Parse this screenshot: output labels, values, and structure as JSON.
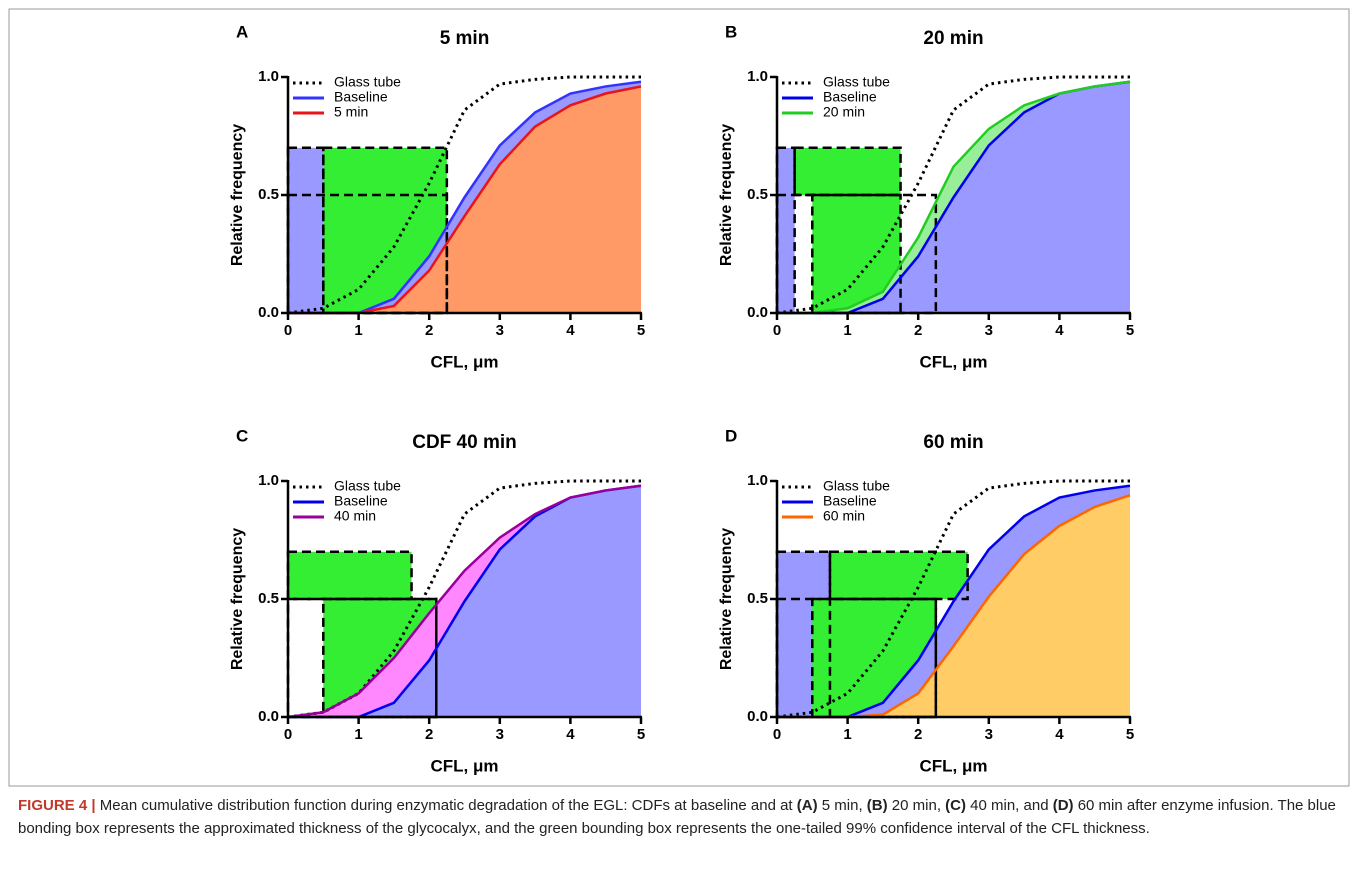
{
  "chart_data": [
    {
      "type": "line",
      "label": "A",
      "title": "5 min",
      "xlabel": "CFL, μm",
      "ylabel": "Relative frequency",
      "x": [
        0,
        0.5,
        1,
        1.5,
        2,
        2.5,
        3,
        3.5,
        4,
        4.5,
        5
      ],
      "xlim": [
        0,
        5
      ],
      "ylim": [
        0,
        1
      ],
      "xticks": [
        0,
        1,
        2,
        3,
        4,
        5
      ],
      "yticks": [
        {
          "value": 0,
          "label": "0.0"
        },
        {
          "value": 0.5,
          "label": "0.5"
        },
        {
          "value": 1,
          "label": "1.0"
        }
      ],
      "boxes": [
        {
          "x": [
            0,
            0.5
          ],
          "y": [
            0,
            0.7
          ],
          "fill": "#9999ff"
        },
        {
          "x": [
            0.5,
            2.25
          ],
          "y": [
            0,
            0.7
          ],
          "fill": "#33ee33"
        },
        {
          "x": [
            0,
            2.25
          ],
          "y": [
            0,
            0.5
          ]
        }
      ],
      "series": [
        {
          "name": "Glass tube",
          "color": "#000000",
          "dash": "dotted",
          "values": [
            0,
            0.02,
            0.1,
            0.28,
            0.55,
            0.86,
            0.97,
            0.99,
            1,
            1,
            1
          ]
        },
        {
          "name": "Baseline",
          "color": "#3333ff",
          "fill": "#9999ff",
          "fill_to": 2,
          "values": [
            0,
            0,
            0,
            0.06,
            0.24,
            0.49,
            0.71,
            0.85,
            0.93,
            0.96,
            0.98
          ]
        },
        {
          "name": "5 min",
          "color": "#e8141a",
          "fill": "#ff9966",
          "values": [
            0,
            0,
            0,
            0.03,
            0.18,
            0.41,
            0.63,
            0.79,
            0.88,
            0.93,
            0.96
          ]
        }
      ]
    },
    {
      "type": "line",
      "label": "B",
      "title": "20 min",
      "xlabel": "CFL, μm",
      "ylabel": "Relative frequency",
      "x": [
        0,
        0.5,
        1,
        1.5,
        2,
        2.5,
        3,
        3.5,
        4,
        4.5,
        5
      ],
      "xlim": [
        0,
        5
      ],
      "ylim": [
        0,
        1
      ],
      "xticks": [
        0,
        1,
        2,
        3,
        4,
        5
      ],
      "yticks": [
        {
          "value": 0,
          "label": "0.0"
        },
        {
          "value": 0.5,
          "label": "0.5"
        },
        {
          "value": 1,
          "label": "1.0"
        }
      ],
      "boxes": [
        {
          "x": [
            0,
            0.25
          ],
          "y": [
            0,
            0.7
          ],
          "fill": "#9999ff"
        },
        {
          "x": [
            0.25,
            1.75
          ],
          "y": [
            0.5,
            0.7
          ],
          "fill": "#33ee33"
        },
        {
          "x": [
            0.5,
            1.75
          ],
          "y": [
            0,
            0.5
          ],
          "fill": "#33ee33"
        },
        {
          "x": [
            0,
            2.25
          ],
          "y": [
            0,
            0.5
          ]
        }
      ],
      "series": [
        {
          "name": "Glass tube",
          "color": "#000000",
          "dash": "dotted",
          "values": [
            0,
            0.02,
            0.1,
            0.28,
            0.55,
            0.86,
            0.97,
            0.99,
            1,
            1,
            1
          ]
        },
        {
          "name": "Baseline",
          "color": "#0000ee",
          "fill": "#9999ff",
          "values": [
            0,
            0,
            0,
            0.06,
            0.24,
            0.49,
            0.71,
            0.85,
            0.93,
            0.96,
            0.98
          ]
        },
        {
          "name": "20 min",
          "color": "#22cc22",
          "fill": "#99ee99",
          "fill_to": 1,
          "values": [
            0,
            0,
            0.02,
            0.09,
            0.32,
            0.62,
            0.78,
            0.88,
            0.93,
            0.96,
            0.98
          ]
        }
      ]
    },
    {
      "type": "line",
      "label": "C",
      "title": "CDF 40 min",
      "xlabel": "CFL, μm",
      "ylabel": "Relative frequency",
      "x": [
        0,
        0.5,
        1,
        1.5,
        2,
        2.5,
        3,
        3.5,
        4,
        4.5,
        5
      ],
      "xlim": [
        0,
        5
      ],
      "ylim": [
        0,
        1
      ],
      "xticks": [
        0,
        1,
        2,
        3,
        4,
        5
      ],
      "yticks": [
        {
          "value": 0,
          "label": "0.0"
        },
        {
          "value": 0.5,
          "label": "0.5"
        },
        {
          "value": 1,
          "label": "1.0"
        }
      ],
      "boxes": [
        {
          "x": [
            0,
            1.75
          ],
          "y": [
            0.5,
            0.7
          ],
          "fill": "#33ee33"
        },
        {
          "x": [
            0.5,
            2.1
          ],
          "y": [
            0,
            0.5
          ],
          "fill": "#33ee33"
        },
        {
          "x": [
            0,
            2.1
          ],
          "y": [
            0,
            0.5
          ]
        }
      ],
      "series": [
        {
          "name": "Glass tube",
          "color": "#000000",
          "dash": "dotted",
          "values": [
            0,
            0.02,
            0.1,
            0.28,
            0.55,
            0.86,
            0.97,
            0.99,
            1,
            1,
            1
          ]
        },
        {
          "name": "Baseline",
          "color": "#0000ee",
          "fill": "#9999ff",
          "values": [
            0,
            0,
            0,
            0.06,
            0.24,
            0.49,
            0.71,
            0.85,
            0.93,
            0.96,
            0.98
          ]
        },
        {
          "name": "40 min",
          "color": "#990099",
          "fill": "#ff88ff",
          "fill_to": 1,
          "values": [
            0,
            0.02,
            0.1,
            0.25,
            0.44,
            0.62,
            0.76,
            0.86,
            0.93,
            0.96,
            0.98
          ]
        }
      ]
    },
    {
      "type": "line",
      "label": "D",
      "title": "60 min",
      "xlabel": "CFL, μm",
      "ylabel": "Relative frequency",
      "x": [
        0,
        0.5,
        1,
        1.5,
        2,
        2.5,
        3,
        3.5,
        4,
        4.5,
        5
      ],
      "xlim": [
        0,
        5
      ],
      "ylim": [
        0,
        1
      ],
      "xticks": [
        0,
        1,
        2,
        3,
        4,
        5
      ],
      "yticks": [
        {
          "value": 0,
          "label": "0.0"
        },
        {
          "value": 0.5,
          "label": "0.5"
        },
        {
          "value": 1,
          "label": "1.0"
        }
      ],
      "boxes": [
        {
          "x": [
            0,
            0.75
          ],
          "y": [
            0,
            0.7
          ],
          "fill": "#9999ff"
        },
        {
          "x": [
            0.75,
            2.7
          ],
          "y": [
            0.5,
            0.7
          ],
          "fill": "#33ee33"
        },
        {
          "x": [
            0.5,
            2.25
          ],
          "y": [
            0,
            0.5
          ],
          "fill": "#33ee33"
        },
        {
          "x": [
            0,
            2.25
          ],
          "y": [
            0,
            0.5
          ]
        }
      ],
      "series": [
        {
          "name": "Glass tube",
          "color": "#000000",
          "dash": "dotted",
          "values": [
            0,
            0.02,
            0.1,
            0.28,
            0.55,
            0.86,
            0.97,
            0.99,
            1,
            1,
            1
          ]
        },
        {
          "name": "Baseline",
          "color": "#0000ee",
          "fill": "#9999ff",
          "fill_to": 2,
          "values": [
            0,
            0,
            0,
            0.06,
            0.24,
            0.49,
            0.71,
            0.85,
            0.93,
            0.96,
            0.98
          ]
        },
        {
          "name": "60 min",
          "color": "#ff6600",
          "fill": "#ffcc66",
          "values": [
            0,
            0,
            0,
            0.01,
            0.1,
            0.3,
            0.51,
            0.69,
            0.81,
            0.89,
            0.94
          ]
        }
      ]
    }
  ],
  "caption": {
    "label": "FIGURE 4 |",
    "runs": [
      {
        "text": " Mean cumulative distribution function during enzymatic degradation of the EGL: CDFs at baseline and at "
      },
      {
        "text": "(A)",
        "bold": true
      },
      {
        "text": " 5 min, "
      },
      {
        "text": "(B)",
        "bold": true
      },
      {
        "text": " 20 min, "
      },
      {
        "text": "(C)",
        "bold": true
      },
      {
        "text": " 40 min, and "
      },
      {
        "text": "(D)",
        "bold": true
      },
      {
        "text": " 60 min after enzyme infusion. The blue bonding box represents the approximated thickness of the glycocalyx, and the green bounding box represents the one-tailed 99% confidence interval of the CFL thickness."
      }
    ]
  }
}
